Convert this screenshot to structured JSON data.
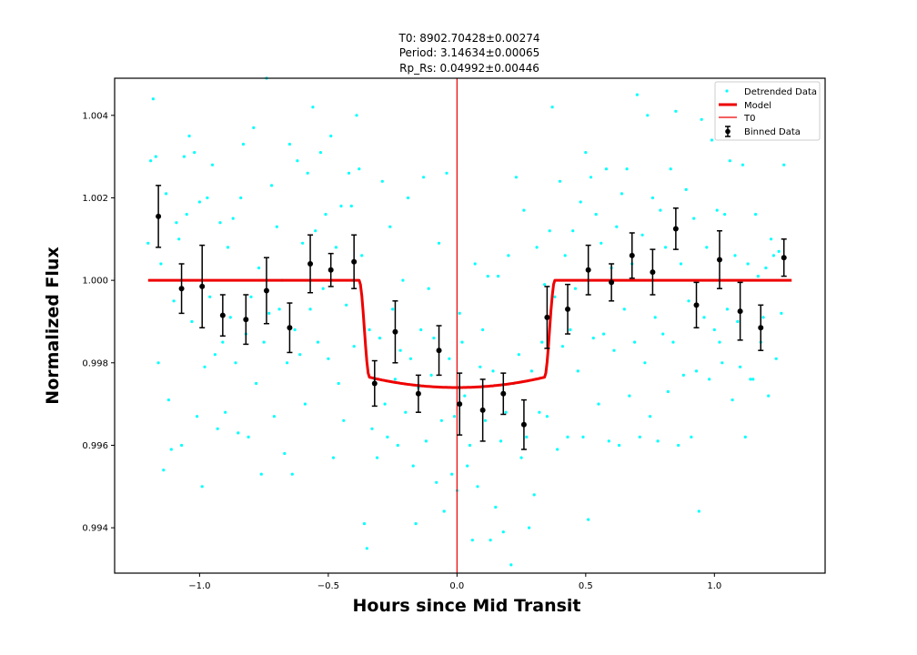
{
  "chart_data": {
    "type": "scatter",
    "title_lines": [
      "T0: 8902.70428±0.00274",
      "Period: 3.14634±0.00065",
      "Rp_Rs: 0.04992±0.00446"
    ],
    "xlabel": "Hours since Mid Transit",
    "ylabel": "Normalized Flux",
    "xlim": [
      -1.33,
      1.43
    ],
    "ylim": [
      0.9929,
      1.0049
    ],
    "xticks": [
      -1.0,
      -0.5,
      0.0,
      0.5,
      1.0
    ],
    "xtick_labels": [
      "−1.0",
      "−0.5",
      "0.0",
      "0.5",
      "1.0"
    ],
    "yticks": [
      0.994,
      0.996,
      0.998,
      1.0,
      1.002,
      1.004
    ],
    "ytick_labels": [
      "0.994",
      "0.996",
      "0.998",
      "1.000",
      "1.002",
      "1.004"
    ],
    "grid": false,
    "legend_position": "top-right",
    "legend": [
      "Detrended Data",
      "Model",
      "T0",
      "Binned Data"
    ],
    "colors": {
      "detrended": "#00ffff",
      "model": "#ee0000",
      "t0": "#ee0000",
      "binned": "#000000"
    },
    "t0_x": 0.0,
    "model": {
      "baseline": 1.0,
      "depth_floor": 0.9974,
      "depth_edge": 0.99765,
      "x_start": -1.2,
      "x_end": 1.3,
      "ingress_start": -0.38,
      "ingress_end": -0.34,
      "egress_start": 0.34,
      "egress_end": 0.38
    },
    "binned": [
      {
        "x": -1.16,
        "y": 1.00155,
        "err": 0.00075
      },
      {
        "x": -1.07,
        "y": 0.9998,
        "err": 0.0006
      },
      {
        "x": -0.99,
        "y": 0.99985,
        "err": 0.001
      },
      {
        "x": -0.91,
        "y": 0.99915,
        "err": 0.0005
      },
      {
        "x": -0.82,
        "y": 0.99905,
        "err": 0.0006
      },
      {
        "x": -0.74,
        "y": 0.99975,
        "err": 0.0008
      },
      {
        "x": -0.65,
        "y": 0.99885,
        "err": 0.0006
      },
      {
        "x": -0.57,
        "y": 1.0004,
        "err": 0.0007
      },
      {
        "x": -0.49,
        "y": 1.00025,
        "err": 0.0004
      },
      {
        "x": -0.4,
        "y": 1.00045,
        "err": 0.00065
      },
      {
        "x": -0.32,
        "y": 0.9975,
        "err": 0.00055
      },
      {
        "x": -0.24,
        "y": 0.99875,
        "err": 0.00075
      },
      {
        "x": -0.15,
        "y": 0.99725,
        "err": 0.00045
      },
      {
        "x": -0.07,
        "y": 0.9983,
        "err": 0.0006
      },
      {
        "x": 0.01,
        "y": 0.997,
        "err": 0.00075
      },
      {
        "x": 0.1,
        "y": 0.99685,
        "err": 0.00075
      },
      {
        "x": 0.18,
        "y": 0.99725,
        "err": 0.0005
      },
      {
        "x": 0.26,
        "y": 0.9965,
        "err": 0.0006
      },
      {
        "x": 0.35,
        "y": 0.9991,
        "err": 0.00075
      },
      {
        "x": 0.43,
        "y": 0.9993,
        "err": 0.0006
      },
      {
        "x": 0.51,
        "y": 1.00025,
        "err": 0.0006
      },
      {
        "x": 0.6,
        "y": 0.99995,
        "err": 0.00045
      },
      {
        "x": 0.68,
        "y": 1.0006,
        "err": 0.00055
      },
      {
        "x": 0.76,
        "y": 1.0002,
        "err": 0.00055
      },
      {
        "x": 0.85,
        "y": 1.00125,
        "err": 0.0005
      },
      {
        "x": 0.93,
        "y": 0.9994,
        "err": 0.00055
      },
      {
        "x": 1.02,
        "y": 1.0005,
        "err": 0.0007
      },
      {
        "x": 1.1,
        "y": 0.99925,
        "err": 0.0007
      },
      {
        "x": 1.18,
        "y": 0.99885,
        "err": 0.00055
      },
      {
        "x": 1.27,
        "y": 1.00055,
        "err": 0.00045
      }
    ],
    "detrended": [
      [
        -1.2,
        1.0009
      ],
      [
        -1.19,
        1.0029
      ],
      [
        -1.18,
        1.0044
      ],
      [
        -1.17,
        1.003
      ],
      [
        -1.16,
        0.998
      ],
      [
        -1.15,
        1.0004
      ],
      [
        -1.14,
        0.9954
      ],
      [
        -1.13,
        1.0021
      ],
      [
        -1.12,
        0.9971
      ],
      [
        -1.11,
        0.9959
      ],
      [
        -1.1,
        0.9995
      ],
      [
        -1.09,
        1.0014
      ],
      [
        -1.08,
        1.001
      ],
      [
        -1.07,
        0.996
      ],
      [
        -1.06,
        1.003
      ],
      [
        -1.05,
        1.0016
      ],
      [
        -1.04,
        1.0035
      ],
      [
        -1.03,
        0.999
      ],
      [
        -1.02,
        1.0031
      ],
      [
        -1.01,
        0.9967
      ],
      [
        -1.0,
        1.0019
      ],
      [
        -0.99,
        0.995
      ],
      [
        -0.98,
        0.9979
      ],
      [
        -0.97,
        1.002
      ],
      [
        -0.96,
        0.9996
      ],
      [
        -0.95,
        1.0028
      ],
      [
        -0.94,
        0.9982
      ],
      [
        -0.93,
        0.9964
      ],
      [
        -0.92,
        1.0014
      ],
      [
        -0.91,
        0.9985
      ],
      [
        -0.9,
        0.9968
      ],
      [
        -0.89,
        1.0008
      ],
      [
        -0.88,
        0.9991
      ],
      [
        -0.87,
        1.0015
      ],
      [
        -0.86,
        0.998
      ],
      [
        -0.85,
        0.9963
      ],
      [
        -0.84,
        1.002
      ],
      [
        -0.83,
        1.0033
      ],
      [
        -0.82,
        0.9987
      ],
      [
        -0.81,
        0.9962
      ],
      [
        -0.8,
        0.9996
      ],
      [
        -0.79,
        1.0037
      ],
      [
        -0.78,
        0.9975
      ],
      [
        -0.77,
        1.0003
      ],
      [
        -0.76,
        0.9953
      ],
      [
        -0.75,
        0.9985
      ],
      [
        -0.74,
        1.0049
      ],
      [
        -0.73,
        0.9992
      ],
      [
        -0.72,
        1.0023
      ],
      [
        -0.71,
        0.9967
      ],
      [
        -0.7,
        1.0013
      ],
      [
        -0.69,
        0.9993
      ],
      [
        -0.68,
        1.0
      ],
      [
        -0.67,
        0.9958
      ],
      [
        -0.66,
        0.998
      ],
      [
        -0.65,
        1.0033
      ],
      [
        -0.64,
        0.9953
      ],
      [
        -0.63,
        0.9988
      ],
      [
        -0.62,
        1.0029
      ],
      [
        -0.61,
        0.9982
      ],
      [
        -0.6,
        1.0009
      ],
      [
        -0.59,
        0.997
      ],
      [
        -0.58,
        1.0026
      ],
      [
        -0.57,
        0.9993
      ],
      [
        -0.56,
        1.0042
      ],
      [
        -0.55,
        1.0012
      ],
      [
        -0.54,
        0.9985
      ],
      [
        -0.53,
        1.0031
      ],
      [
        -0.52,
        0.9998
      ],
      [
        -0.51,
        1.0016
      ],
      [
        -0.5,
        0.9981
      ],
      [
        -0.49,
        1.0035
      ],
      [
        -0.48,
        0.9957
      ],
      [
        -0.47,
        1.0008
      ],
      [
        -0.46,
        0.9975
      ],
      [
        -0.45,
        1.0018
      ],
      [
        -0.44,
        0.9966
      ],
      [
        -0.43,
        0.9994
      ],
      [
        -0.42,
        1.0026
      ],
      [
        -0.41,
        1.0018
      ],
      [
        -0.4,
        0.9984
      ],
      [
        -0.39,
        1.004
      ],
      [
        -0.38,
        1.0027
      ],
      [
        -0.37,
        1.0006
      ],
      [
        -0.36,
        0.9941
      ],
      [
        -0.35,
        0.9935
      ],
      [
        -0.34,
        0.9988
      ],
      [
        -0.33,
        0.9964
      ],
      [
        -0.32,
        0.9976
      ],
      [
        -0.31,
        0.9957
      ],
      [
        -0.3,
        0.9986
      ],
      [
        -0.29,
        1.0024
      ],
      [
        -0.28,
        0.997
      ],
      [
        -0.27,
        0.9962
      ],
      [
        -0.26,
        1.0013
      ],
      [
        -0.25,
        0.9993
      ],
      [
        -0.24,
        0.9976
      ],
      [
        -0.23,
        0.996
      ],
      [
        -0.22,
        0.9983
      ],
      [
        -0.21,
        1.0
      ],
      [
        -0.2,
        0.9968
      ],
      [
        -0.19,
        1.002
      ],
      [
        -0.18,
        0.9981
      ],
      [
        -0.17,
        0.9955
      ],
      [
        -0.16,
        0.9941
      ],
      [
        -0.15,
        0.9974
      ],
      [
        -0.14,
        0.9988
      ],
      [
        -0.13,
        1.0025
      ],
      [
        -0.12,
        0.9961
      ],
      [
        -0.11,
        0.9998
      ],
      [
        -0.1,
        0.9977
      ],
      [
        -0.09,
        0.9986
      ],
      [
        -0.08,
        0.9951
      ],
      [
        -0.07,
        1.0009
      ],
      [
        -0.06,
        0.9966
      ],
      [
        -0.05,
        0.9944
      ],
      [
        -0.04,
        1.0026
      ],
      [
        -0.03,
        0.9981
      ],
      [
        -0.02,
        0.9953
      ],
      [
        -0.01,
        0.9967
      ],
      [
        0.0,
        0.9949
      ],
      [
        0.01,
        0.9992
      ],
      [
        0.02,
        0.9985
      ],
      [
        0.03,
        0.9972
      ],
      [
        0.04,
        0.9955
      ],
      [
        0.05,
        0.996
      ],
      [
        0.06,
        0.9937
      ],
      [
        0.07,
        1.0004
      ],
      [
        0.08,
        0.995
      ],
      [
        0.09,
        0.9979
      ],
      [
        0.1,
        0.9988
      ],
      [
        0.11,
        0.9966
      ],
      [
        0.12,
        1.0001
      ],
      [
        0.13,
        0.9937
      ],
      [
        0.14,
        0.9978
      ],
      [
        0.15,
        0.9945
      ],
      [
        0.16,
        1.0001
      ],
      [
        0.17,
        0.9961
      ],
      [
        0.18,
        0.9939
      ],
      [
        0.19,
        0.9968
      ],
      [
        0.2,
        1.0006
      ],
      [
        0.21,
        0.9931
      ],
      [
        0.22,
        0.9975
      ],
      [
        0.23,
        1.0025
      ],
      [
        0.24,
        0.9982
      ],
      [
        0.25,
        0.9957
      ],
      [
        0.26,
        1.0017
      ],
      [
        0.27,
        0.9962
      ],
      [
        0.28,
        0.994
      ],
      [
        0.29,
        0.9978
      ],
      [
        0.3,
        0.9948
      ],
      [
        0.31,
        1.0008
      ],
      [
        0.32,
        0.9968
      ],
      [
        0.33,
        0.9985
      ],
      [
        0.34,
        0.9999
      ],
      [
        0.35,
        0.9967
      ],
      [
        0.36,
        1.0012
      ],
      [
        0.37,
        1.0042
      ],
      [
        0.38,
        0.9996
      ],
      [
        0.39,
        0.9959
      ],
      [
        0.4,
        1.0024
      ],
      [
        0.41,
        0.9984
      ],
      [
        0.42,
        1.0006
      ],
      [
        0.43,
        0.9962
      ],
      [
        0.44,
        0.9988
      ],
      [
        0.45,
        1.0012
      ],
      [
        0.46,
        0.9998
      ],
      [
        0.47,
        0.9978
      ],
      [
        0.48,
        1.0019
      ],
      [
        0.49,
        0.9962
      ],
      [
        0.5,
        1.0031
      ],
      [
        0.51,
        0.9942
      ],
      [
        0.52,
        1.0025
      ],
      [
        0.53,
        0.9986
      ],
      [
        0.54,
        1.0016
      ],
      [
        0.55,
        0.997
      ],
      [
        0.56,
        1.0009
      ],
      [
        0.57,
        0.9987
      ],
      [
        0.58,
        1.0027
      ],
      [
        0.59,
        0.9961
      ],
      [
        0.6,
        1.0003
      ],
      [
        0.61,
        0.9983
      ],
      [
        0.62,
        1.0013
      ],
      [
        0.63,
        0.996
      ],
      [
        0.64,
        1.0021
      ],
      [
        0.65,
        0.9993
      ],
      [
        0.66,
        1.0027
      ],
      [
        0.67,
        0.9972
      ],
      [
        0.68,
        1.0004
      ],
      [
        0.69,
        0.9985
      ],
      [
        0.7,
        1.0045
      ],
      [
        0.71,
        0.9962
      ],
      [
        0.72,
        1.0011
      ],
      [
        0.73,
        0.998
      ],
      [
        0.74,
        1.004
      ],
      [
        0.75,
        0.9967
      ],
      [
        0.76,
        1.002
      ],
      [
        0.77,
        0.9991
      ],
      [
        0.78,
        0.9961
      ],
      [
        0.79,
        1.0017
      ],
      [
        0.8,
        0.9987
      ],
      [
        0.81,
        1.0008
      ],
      [
        0.82,
        0.9973
      ],
      [
        0.83,
        1.0027
      ],
      [
        0.84,
        0.9985
      ],
      [
        0.85,
        1.0041
      ],
      [
        0.86,
        0.996
      ],
      [
        0.87,
        1.0004
      ],
      [
        0.88,
        0.9977
      ],
      [
        0.89,
        1.0022
      ],
      [
        0.9,
        0.9995
      ],
      [
        0.91,
        0.9962
      ],
      [
        0.92,
        1.0015
      ],
      [
        0.93,
        0.9978
      ],
      [
        0.94,
        0.9944
      ],
      [
        0.95,
        1.0039
      ],
      [
        0.96,
        0.9991
      ],
      [
        0.97,
        1.0008
      ],
      [
        0.98,
        0.9976
      ],
      [
        0.99,
        1.0034
      ],
      [
        1.0,
        0.9988
      ],
      [
        1.01,
        1.0017
      ],
      [
        1.02,
        0.9985
      ],
      [
        1.03,
        0.998
      ],
      [
        1.04,
        1.0016
      ],
      [
        1.05,
        0.9993
      ],
      [
        1.06,
        1.0029
      ],
      [
        1.07,
        0.9971
      ],
      [
        1.08,
        1.0006
      ],
      [
        1.09,
        0.999
      ],
      [
        1.1,
        0.9979
      ],
      [
        1.11,
        1.0028
      ],
      [
        1.12,
        0.9962
      ],
      [
        1.13,
        1.0004
      ],
      [
        1.14,
        0.9976
      ],
      [
        1.15,
        0.9976
      ],
      [
        1.16,
        1.0016
      ],
      [
        1.17,
        1.0001
      ],
      [
        1.18,
        0.9985
      ],
      [
        1.19,
        0.9991
      ],
      [
        1.2,
        1.0003
      ],
      [
        1.21,
        0.9972
      ],
      [
        1.22,
        1.001
      ],
      [
        1.23,
        1.0006
      ],
      [
        1.24,
        0.9981
      ],
      [
        1.25,
        1.0007
      ],
      [
        1.26,
        0.9992
      ],
      [
        1.27,
        1.0028
      ]
    ]
  }
}
